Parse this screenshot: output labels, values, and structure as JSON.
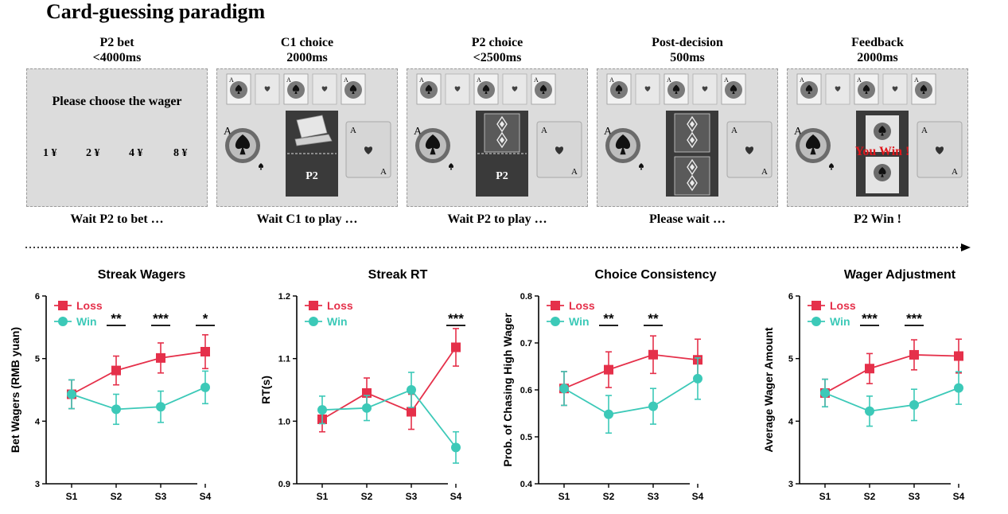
{
  "figure_title": "Card-guessing paradigm",
  "phases": [
    {
      "name": "P2 bet",
      "time": "<4000ms",
      "caption": "Wait P2 to bet …"
    },
    {
      "name": "C1 choice",
      "time": "2000ms",
      "caption": "Wait C1 to play …"
    },
    {
      "name": "P2 choice",
      "time": "<2500ms",
      "caption": "Wait P2 to play …"
    },
    {
      "name": "Post-decision",
      "time": "500ms",
      "caption": "Please wait …"
    },
    {
      "name": "Feedback",
      "time": "2000ms",
      "caption": "P2 Win !"
    }
  ],
  "bet_screen": {
    "prompt": "Please choose the wager",
    "options": [
      "1 ¥",
      "2 ¥",
      "4 ¥",
      "8 ¥"
    ]
  },
  "card_labels": {
    "player": "P2",
    "win_text": "You Win !",
    "ace": "A"
  },
  "colors": {
    "loss": "#e5304a",
    "win": "#3cc9b8",
    "panel": "#dcdcdc",
    "card_dark": "#3a3a3a",
    "win_text": "#e0161b"
  },
  "chart_data": [
    {
      "type": "line",
      "title": "Streak Wagers",
      "ylabel": "Bet Wagers (RMB yuan)",
      "categories": [
        "S1",
        "S2",
        "S3",
        "S4"
      ],
      "ylim": [
        3,
        6
      ],
      "yticks": [
        3,
        4,
        5,
        6
      ],
      "ytick_labels": [
        "3",
        "4",
        "5",
        "6"
      ],
      "legend": [
        "Loss",
        "Win"
      ],
      "series": [
        {
          "name": "Loss",
          "values": [
            4.43,
            4.81,
            5.01,
            5.11
          ],
          "err": [
            0.23,
            0.23,
            0.24,
            0.27
          ]
        },
        {
          "name": "Win",
          "values": [
            4.43,
            4.19,
            4.23,
            4.54
          ],
          "err": [
            0.23,
            0.24,
            0.25,
            0.26
          ]
        }
      ],
      "significance": [
        {
          "at": 1,
          "label": "**"
        },
        {
          "at": 2,
          "label": "***"
        },
        {
          "at": 3,
          "label": "*"
        }
      ]
    },
    {
      "type": "line",
      "title": "Streak RT",
      "ylabel": "RT(s)",
      "categories": [
        "S1",
        "S2",
        "S3",
        "S4"
      ],
      "ylim": [
        0.9,
        1.2
      ],
      "yticks": [
        0.9,
        1.0,
        1.1,
        1.2
      ],
      "ytick_labels": [
        "0.9",
        "1.0",
        "1.1",
        "1.2"
      ],
      "legend": [
        "Loss",
        "Win"
      ],
      "series": [
        {
          "name": "Loss",
          "values": [
            1.003,
            1.045,
            1.015,
            1.118
          ],
          "err": [
            0.02,
            0.024,
            0.028,
            0.03
          ]
        },
        {
          "name": "Win",
          "values": [
            1.018,
            1.021,
            1.05,
            0.958
          ],
          "err": [
            0.022,
            0.02,
            0.028,
            0.025
          ]
        }
      ],
      "significance": [
        {
          "at": 3,
          "label": "***"
        }
      ]
    },
    {
      "type": "line",
      "title": "Choice Consistency",
      "ylabel": "Prob. of Chasing High Wager",
      "categories": [
        "S1",
        "S2",
        "S3",
        "S4"
      ],
      "ylim": [
        0.4,
        0.8
      ],
      "yticks": [
        0.4,
        0.5,
        0.6,
        0.7,
        0.8
      ],
      "ytick_labels": [
        "0.4",
        "0.5",
        "0.6",
        "0.7",
        "0.8"
      ],
      "legend": [
        "Loss",
        "Win"
      ],
      "series": [
        {
          "name": "Loss",
          "values": [
            0.603,
            0.643,
            0.675,
            0.664
          ],
          "err": [
            0.036,
            0.038,
            0.04,
            0.044
          ]
        },
        {
          "name": "Win",
          "values": [
            0.603,
            0.548,
            0.565,
            0.624
          ],
          "err": [
            0.036,
            0.04,
            0.038,
            0.044
          ]
        }
      ],
      "significance": [
        {
          "at": 1,
          "label": "**"
        },
        {
          "at": 2,
          "label": "**"
        }
      ]
    },
    {
      "type": "line",
      "title": "Wager Adjustment",
      "ylabel": "Average Wager Amount",
      "categories": [
        "S1",
        "S2",
        "S3",
        "S4"
      ],
      "ylim": [
        3,
        6
      ],
      "yticks": [
        3,
        4,
        5,
        6
      ],
      "ytick_labels": [
        "3",
        "4",
        "5",
        "6"
      ],
      "legend": [
        "Loss",
        "Win"
      ],
      "series": [
        {
          "name": "Loss",
          "values": [
            4.45,
            4.84,
            5.06,
            5.04
          ],
          "err": [
            0.22,
            0.24,
            0.24,
            0.27
          ]
        },
        {
          "name": "Win",
          "values": [
            4.45,
            4.16,
            4.26,
            4.53
          ],
          "err": [
            0.22,
            0.24,
            0.25,
            0.26
          ]
        }
      ],
      "significance": [
        {
          "at": 1,
          "label": "***"
        },
        {
          "at": 2,
          "label": "***"
        }
      ]
    }
  ]
}
